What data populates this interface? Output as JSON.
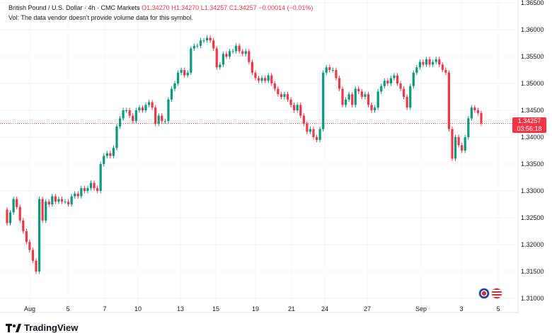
{
  "legend": {
    "symbol": "British Pound / U.S. Dollar · 4h · CMC Markets",
    "o": "O1.34270",
    "h": "H1.34270",
    "l": "L1.34257",
    "c": "C1.34257",
    "change": "−0.00014 (−0.01%)",
    "vol_note": "Vol: The data vendor doesn't provide volume data for this symbol."
  },
  "price_tag": {
    "price": "1.34257",
    "countdown": "03:56:18"
  },
  "brand": "TradingView",
  "colors": {
    "up": "#089981",
    "down": "#f23645",
    "grid": "#f0f3fa",
    "axis_text": "#131722"
  },
  "chart_data": {
    "type": "candlestick",
    "y_ticks": [
      "1.36500",
      "1.36000",
      "1.35500",
      "1.35000",
      "1.34500",
      "1.34000",
      "1.33500",
      "1.33000",
      "1.32500",
      "1.32000",
      "1.31500",
      "1.31000"
    ],
    "x_ticks": [
      "Aug",
      "5",
      "7",
      "10",
      "13",
      "15",
      "19",
      "21",
      "24",
      "27",
      "Sep",
      "3",
      "5"
    ],
    "ylim": [
      1.31,
      1.365
    ],
    "current_price": 1.34257,
    "closes": [
      1.324,
      1.326,
      1.3285,
      1.327,
      1.3245,
      1.3225,
      1.3205,
      1.319,
      1.317,
      1.315,
      1.3285,
      1.3245,
      1.328,
      1.3275,
      1.329,
      1.328,
      1.3285,
      1.328,
      1.328,
      1.3275,
      1.329,
      1.3295,
      1.329,
      1.3305,
      1.33,
      1.3305,
      1.3315,
      1.3305,
      1.33,
      1.335,
      1.3365,
      1.337,
      1.3365,
      1.338,
      1.342,
      1.3435,
      1.345,
      1.345,
      1.344,
      1.343,
      1.345,
      1.3455,
      1.345,
      1.346,
      1.3465,
      1.3455,
      1.3425,
      1.344,
      1.343,
      1.343,
      1.347,
      1.349,
      1.35,
      1.352,
      1.3525,
      1.3515,
      1.352,
      1.3565,
      1.357,
      1.357,
      1.358,
      1.358,
      1.3585,
      1.358,
      1.3565,
      1.353,
      1.3535,
      1.3555,
      1.355,
      1.356,
      1.356,
      1.357,
      1.356,
      1.3555,
      1.356,
      1.354,
      1.352,
      1.351,
      1.3505,
      1.351,
      1.3505,
      1.3515,
      1.35,
      1.349,
      1.348,
      1.3475,
      1.348,
      1.347,
      1.346,
      1.345,
      1.346,
      1.344,
      1.3425,
      1.341,
      1.3415,
      1.34,
      1.3395,
      1.3415,
      1.352,
      1.353,
      1.3525,
      1.3525,
      1.351,
      1.349,
      1.346,
      1.347,
      1.348,
      1.346,
      1.349,
      1.3485,
      1.3475,
      1.348,
      1.346,
      1.345,
      1.3455,
      1.3485,
      1.3495,
      1.3505,
      1.35,
      1.351,
      1.3515,
      1.35,
      1.349,
      1.3475,
      1.3455,
      1.3495,
      1.352,
      1.353,
      1.354,
      1.3535,
      1.3545,
      1.3535,
      1.354,
      1.3545,
      1.3535,
      1.3525,
      1.352,
      1.3415,
      1.336,
      1.34,
      1.3385,
      1.3375,
      1.34,
      1.3435,
      1.3455,
      1.345,
      1.3445,
      1.34257
    ]
  }
}
